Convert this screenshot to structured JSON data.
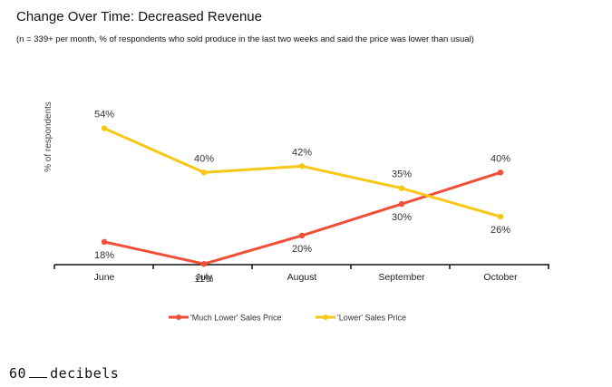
{
  "title": "Change Over Time: Decreased Revenue",
  "subtitle": "(n = 339+ per month, % of respondents who sold produce in the last two weeks and said the price was lower than usual)",
  "brand": {
    "prefix": "60",
    "suffix": "decibels"
  },
  "chart_data": {
    "type": "line",
    "categories": [
      "June",
      "July",
      "August",
      "September",
      "October"
    ],
    "ylabel": "% of respondents",
    "xlabel": "",
    "ylim": [
      0,
      70
    ],
    "grid": false,
    "legend_position": "bottom-center",
    "series": [
      {
        "name": "'Much Lower' Sales Price",
        "color": "#f04e37",
        "values": [
          18,
          11,
          20,
          30,
          40
        ],
        "labels": [
          "18%",
          "11%",
          "20%",
          "30%",
          "40%"
        ]
      },
      {
        "name": "'Lower' Sales Price",
        "color": "#f7c716",
        "values": [
          54,
          40,
          42,
          35,
          26
        ],
        "labels": [
          "54%",
          "40%",
          "42%",
          "35%",
          "26%"
        ]
      }
    ]
  }
}
